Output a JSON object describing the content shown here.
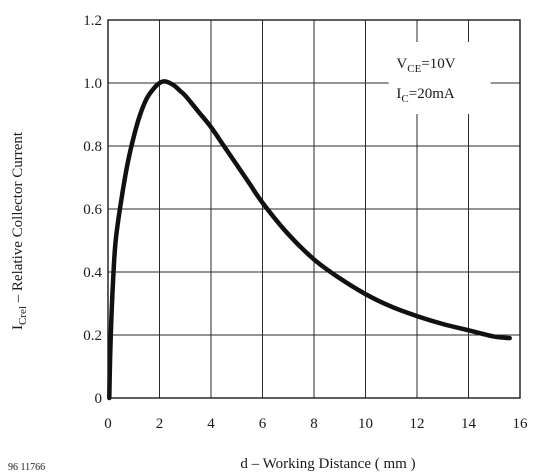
{
  "chart_data": {
    "type": "line",
    "figure_id": "96 11766",
    "xlabel": "d – Working Distance  ( mm )",
    "ylabel": {
      "symbol": "I",
      "subscript": "Crel",
      "text": " – Relative Collector Current"
    },
    "xlim": [
      0,
      16
    ],
    "ylim": [
      0,
      1.2
    ],
    "xticks": [
      0,
      2,
      4,
      6,
      8,
      10,
      12,
      14,
      16
    ],
    "yticks": [
      "0",
      "0.2",
      "0.4",
      "0.6",
      "0.8",
      "1.0",
      "1.2"
    ],
    "yticks_values": [
      0,
      0.2,
      0.4,
      0.6,
      0.8,
      1.0,
      1.2
    ],
    "grid": true,
    "annotations": [
      {
        "symbol": "V",
        "subscript": "CE",
        "text": "=10V"
      },
      {
        "symbol": "I",
        "subscript": "C",
        "text": "=20mA"
      }
    ],
    "series": [
      {
        "color": "#111111",
        "x": [
          0.05,
          0.1,
          0.2,
          0.3,
          0.5,
          0.75,
          1.0,
          1.25,
          1.5,
          1.75,
          2.0,
          2.2,
          2.4,
          2.6,
          2.8,
          3.0,
          3.5,
          4.0,
          4.5,
          5.0,
          5.5,
          6.0,
          7.0,
          8.0,
          9.0,
          10.0,
          11.0,
          12.0,
          13.0,
          14.0,
          15.0,
          15.6
        ],
        "y": [
          0.0,
          0.18,
          0.38,
          0.5,
          0.62,
          0.74,
          0.83,
          0.9,
          0.95,
          0.98,
          1.0,
          1.005,
          1.0,
          0.99,
          0.975,
          0.96,
          0.91,
          0.86,
          0.8,
          0.74,
          0.68,
          0.62,
          0.52,
          0.44,
          0.38,
          0.33,
          0.29,
          0.26,
          0.235,
          0.215,
          0.195,
          0.19
        ]
      }
    ]
  }
}
